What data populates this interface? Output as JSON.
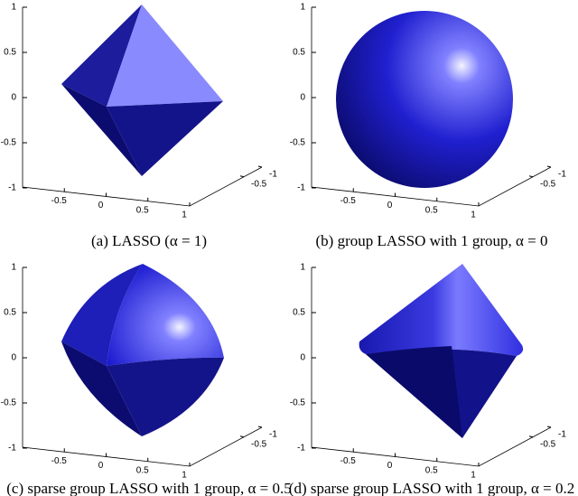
{
  "figure": {
    "panels": [
      {
        "caption": "(a) LASSO (α = 1)",
        "zticks": [
          1,
          0.5,
          0,
          -0.5,
          -1
        ],
        "xticks": [
          -0.5,
          0,
          0.5,
          1
        ],
        "yticks": [
          -1,
          -0.5
        ]
      },
      {
        "caption": "(b) group LASSO with 1 group, α = 0",
        "zticks": [
          1,
          0.5,
          0,
          -0.5,
          -1
        ],
        "xticks": [
          -0.5,
          0,
          0.5,
          1
        ],
        "yticks": [
          -1,
          -0.5
        ]
      },
      {
        "caption": "(c) sparse group LASSO with 1 group, α = 0.5",
        "zticks": [
          1,
          0.5,
          0,
          -0.5,
          -1
        ],
        "xticks": [
          -0.5,
          0,
          0.5,
          1
        ],
        "yticks": [
          -1,
          -0.5
        ]
      },
      {
        "caption": "(d) sparse group LASSO with 1 group, α = 0.2",
        "zticks": [
          1,
          0.5,
          0,
          -0.5,
          -1
        ],
        "xticks": [
          -0.5,
          0,
          0.5,
          1
        ],
        "yticks": [
          -1,
          -0.5
        ]
      }
    ]
  }
}
